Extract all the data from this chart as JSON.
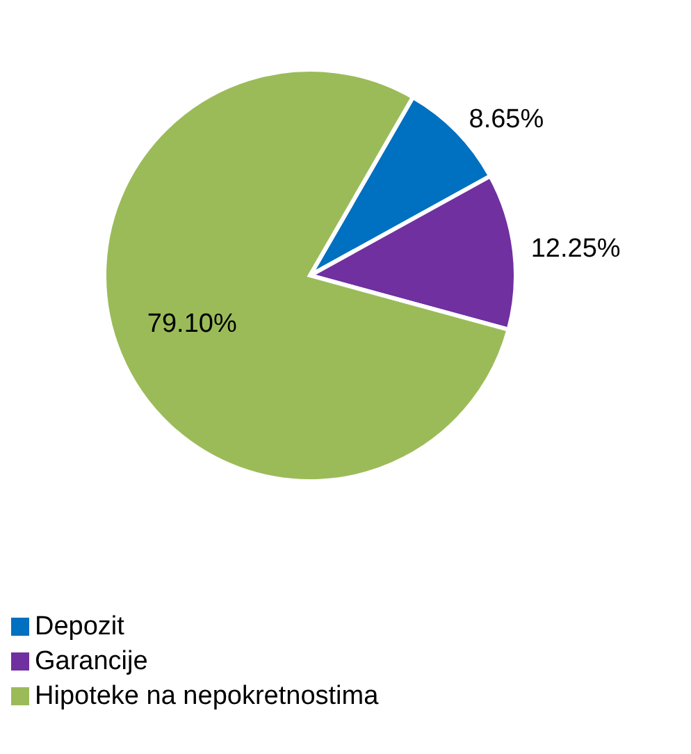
{
  "chart_data": {
    "type": "pie",
    "categories": [
      "Depozit",
      "Garancije",
      "Hipoteke na nepokretnostima"
    ],
    "values": [
      8.65,
      12.25,
      79.1
    ],
    "colors": [
      "#0070c0",
      "#7030a0",
      "#9bbb59"
    ],
    "value_labels": [
      "8.65%",
      "12.25%",
      "79.10%"
    ],
    "legend": "bottom"
  }
}
